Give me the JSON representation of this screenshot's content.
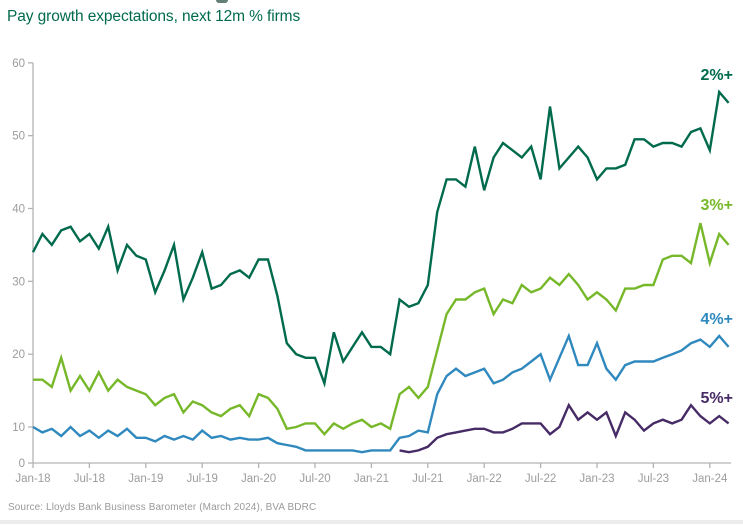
{
  "header": {
    "title": "Pay growth expectations, next 12m % firms"
  },
  "source": {
    "text": "Source: Lloyds Bank Business Barometer (March 2024), BVA BDRC"
  },
  "colors": {
    "title": "#006A4D",
    "axis": "#B3B3B3",
    "tick_text": "#9C9C9C",
    "series_2pct": "#006A4D",
    "series_3pct": "#77B82A",
    "series_4pct": "#3089BE",
    "series_5pct": "#472B66"
  },
  "chart_data": {
    "type": "line",
    "title": "Pay growth expectations, next 12m % firms",
    "xlabel": "",
    "ylabel": "",
    "x_start": "Jan-18",
    "x_end": "Mar-24",
    "frequency": "monthly",
    "x_tick_labels": [
      "Jan-18",
      "Jul-18",
      "Jan-19",
      "Jul-19",
      "Jan-20",
      "Jul-20",
      "Jan-21",
      "Jul-21",
      "Jan-22",
      "Jul-22",
      "Jan-23",
      "Jul-23",
      "Jan-24"
    ],
    "y_ticks": [
      0,
      10,
      20,
      30,
      40,
      50,
      60
    ],
    "ylim": [
      0,
      60
    ],
    "grid": false,
    "legend_position": "right-of-line-ends",
    "series": [
      {
        "name": "2%+",
        "color": "#006A4D",
        "values": [
          34,
          36.5,
          35,
          37,
          37.5,
          35.5,
          36.5,
          34.5,
          37.5,
          31.5,
          35,
          33.5,
          33,
          28.5,
          31.5,
          35,
          27.5,
          30.5,
          34,
          29,
          29.5,
          31,
          31.5,
          30.5,
          33,
          33,
          28,
          21.5,
          20,
          19.5,
          19.5,
          16,
          23,
          19,
          21,
          23,
          21,
          21,
          20,
          27.5,
          26.5,
          27,
          29.5,
          39.5,
          44,
          44,
          43,
          48.5,
          42.5,
          47,
          49,
          48,
          47,
          48.5,
          44,
          54,
          45.5,
          47,
          48.5,
          47,
          44,
          45.5,
          45.5,
          46,
          49.5,
          49.5,
          48.5,
          49,
          49,
          48.5,
          50.5,
          51,
          48,
          56,
          54.5
        ]
      },
      {
        "name": "3%+",
        "color": "#77B82A",
        "values": [
          16.5,
          16.5,
          15.5,
          19.5,
          15,
          17,
          15,
          17.5,
          15,
          16.5,
          15.5,
          15,
          14.5,
          13,
          14,
          14.5,
          12,
          13.5,
          13,
          12,
          11.5,
          12.5,
          13,
          11.5,
          14.5,
          14,
          12.5,
          9.5,
          10,
          10.5,
          10.5,
          8,
          10.5,
          9.5,
          10.5,
          11,
          10,
          10.5,
          9.5,
          14.5,
          15.5,
          14,
          15.5,
          20.5,
          25.5,
          27.5,
          27.5,
          28.5,
          29,
          25.5,
          27.5,
          27,
          29.5,
          28.5,
          29,
          30.5,
          29.5,
          31,
          29.5,
          27.5,
          28.5,
          27.5,
          26,
          29,
          29,
          29.5,
          29.5,
          33,
          33.5,
          33.5,
          32.5,
          38,
          32.5,
          36.5,
          35
        ]
      },
      {
        "name": "4%+",
        "color": "#3089BE",
        "values": [
          10,
          8.5,
          9.5,
          7.5,
          10,
          7.5,
          9,
          7,
          9,
          7.5,
          9.5,
          7,
          7,
          6,
          7.5,
          6.5,
          7.5,
          6.5,
          9,
          7,
          7.5,
          6.5,
          7,
          6.5,
          6.5,
          7,
          5.5,
          5,
          4.5,
          3.5,
          3.5,
          3.5,
          3.5,
          3.5,
          3.5,
          3,
          3.5,
          3.5,
          3.5,
          7,
          7.5,
          9,
          8.5,
          14.5,
          17,
          18,
          17,
          17.5,
          18,
          16,
          16.5,
          17.5,
          18,
          19,
          20,
          16.5,
          19.5,
          22.5,
          18.5,
          18.5,
          21.5,
          18,
          16.5,
          18.5,
          19,
          19,
          19,
          19.5,
          20,
          20.5,
          21.5,
          22,
          21,
          22.5,
          21
        ]
      },
      {
        "name": "5%+",
        "color": "#472B66",
        "values": [
          null,
          null,
          null,
          null,
          null,
          null,
          null,
          null,
          null,
          null,
          null,
          null,
          null,
          null,
          null,
          null,
          null,
          null,
          null,
          null,
          null,
          null,
          null,
          null,
          null,
          null,
          null,
          null,
          null,
          null,
          null,
          null,
          null,
          null,
          null,
          null,
          null,
          null,
          null,
          3.5,
          3,
          3.5,
          4.5,
          7,
          8,
          8.5,
          9,
          9.5,
          9.5,
          8.5,
          8.5,
          9.5,
          10.5,
          10.5,
          10.5,
          8,
          10,
          13,
          11,
          12,
          11,
          12,
          7.5,
          12,
          11,
          9,
          10.5,
          11,
          10.5,
          11,
          13,
          11.5,
          10.5,
          11.5,
          10.5
        ]
      }
    ]
  }
}
